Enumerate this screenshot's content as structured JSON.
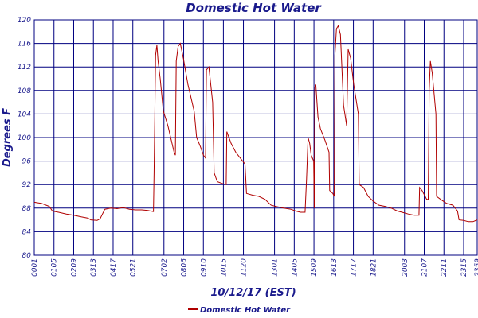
{
  "chart_data": {
    "type": "line",
    "title": "Domestic Hot Water",
    "xlabel": "10/12/17 (EST)",
    "ylabel": "Degrees F",
    "ylim": [
      80,
      120
    ],
    "yticks": [
      80,
      84,
      88,
      92,
      96,
      100,
      104,
      108,
      112,
      116,
      120
    ],
    "xlim": [
      "00:01",
      "23:59"
    ],
    "xticks": [
      "0001",
      "0105",
      "0209",
      "0313",
      "0417",
      "0521",
      "0702",
      "0806",
      "0910",
      "1015",
      "1120",
      "1301",
      "1405",
      "1509",
      "1613",
      "1717",
      "1821",
      "2003",
      "2107",
      "2211",
      "2315",
      "2359"
    ],
    "grid": true,
    "legend_position": "bottom-center",
    "line_color": "#b00000",
    "grid_color": "#000080",
    "series": [
      {
        "name": "Domestic Hot Water",
        "points": [
          [
            "00:01",
            89.0
          ],
          [
            "00:25",
            88.8
          ],
          [
            "00:50",
            88.3
          ],
          [
            "01:00",
            87.5
          ],
          [
            "01:20",
            87.3
          ],
          [
            "01:45",
            87.0
          ],
          [
            "02:09",
            86.8
          ],
          [
            "02:35",
            86.5
          ],
          [
            "02:55",
            86.3
          ],
          [
            "03:05",
            86.0
          ],
          [
            "03:25",
            85.9
          ],
          [
            "03:35",
            86.2
          ],
          [
            "03:50",
            87.8
          ],
          [
            "04:10",
            88.0
          ],
          [
            "04:30",
            87.9
          ],
          [
            "04:50",
            88.1
          ],
          [
            "05:10",
            87.8
          ],
          [
            "05:30",
            87.7
          ],
          [
            "05:50",
            87.7
          ],
          [
            "06:10",
            87.6
          ],
          [
            "06:28",
            87.4
          ],
          [
            "06:30",
            94.0
          ],
          [
            "06:35",
            114.0
          ],
          [
            "06:39",
            115.7
          ],
          [
            "06:43",
            113.0
          ],
          [
            "06:50",
            110.0
          ],
          [
            "07:00",
            104.5
          ],
          [
            "07:15",
            102.0
          ],
          [
            "07:35",
            97.5
          ],
          [
            "07:39",
            97.0
          ],
          [
            "07:42",
            113.0
          ],
          [
            "07:48",
            115.5
          ],
          [
            "07:55",
            116.0
          ],
          [
            "08:05",
            113.5
          ],
          [
            "08:20",
            109.0
          ],
          [
            "08:40",
            104.5
          ],
          [
            "08:48",
            100.0
          ],
          [
            "09:00",
            98.5
          ],
          [
            "09:10",
            97.0
          ],
          [
            "09:17",
            96.5
          ],
          [
            "09:20",
            111.5
          ],
          [
            "09:28",
            112.0
          ],
          [
            "09:40",
            106.0
          ],
          [
            "09:45",
            94.0
          ],
          [
            "09:55",
            92.5
          ],
          [
            "10:10",
            92.2
          ],
          [
            "10:24",
            92.0
          ],
          [
            "10:26",
            101.0
          ],
          [
            "10:40",
            99.0
          ],
          [
            "10:55",
            97.5
          ],
          [
            "11:10",
            96.5
          ],
          [
            "11:25",
            95.5
          ],
          [
            "11:30",
            90.5
          ],
          [
            "11:50",
            90.2
          ],
          [
            "12:10",
            90.0
          ],
          [
            "12:30",
            89.5
          ],
          [
            "12:50",
            88.5
          ],
          [
            "13:05",
            88.3
          ],
          [
            "13:30",
            88.0
          ],
          [
            "13:55",
            87.8
          ],
          [
            "14:10",
            87.5
          ],
          [
            "14:25",
            87.3
          ],
          [
            "14:40",
            87.3
          ],
          [
            "14:45",
            93.0
          ],
          [
            "14:50",
            100.0
          ],
          [
            "14:55",
            99.0
          ],
          [
            "15:00",
            97.0
          ],
          [
            "15:08",
            96.0
          ],
          [
            "15:10",
            88.0
          ],
          [
            "15:12",
            108.5
          ],
          [
            "15:15",
            109.0
          ],
          [
            "15:22",
            103.5
          ],
          [
            "15:30",
            101.5
          ],
          [
            "15:45",
            99.5
          ],
          [
            "15:58",
            97.5
          ],
          [
            "16:00",
            91.0
          ],
          [
            "16:10",
            90.5
          ],
          [
            "16:15",
            90.0
          ],
          [
            "16:17",
            114.0
          ],
          [
            "16:22",
            118.5
          ],
          [
            "16:28",
            119.0
          ],
          [
            "16:35",
            117.5
          ],
          [
            "16:45",
            105.5
          ],
          [
            "16:55",
            102.0
          ],
          [
            "17:00",
            115.0
          ],
          [
            "17:08",
            113.5
          ],
          [
            "17:18",
            109.0
          ],
          [
            "17:33",
            104.0
          ],
          [
            "17:36",
            92.0
          ],
          [
            "17:50",
            91.5
          ],
          [
            "18:05",
            90.0
          ],
          [
            "18:21",
            89.2
          ],
          [
            "18:40",
            88.5
          ],
          [
            "19:00",
            88.3
          ],
          [
            "19:20",
            88.0
          ],
          [
            "19:40",
            87.5
          ],
          [
            "19:55",
            87.3
          ],
          [
            "20:15",
            87.0
          ],
          [
            "20:35",
            86.8
          ],
          [
            "20:50",
            86.8
          ],
          [
            "20:52",
            91.5
          ],
          [
            "21:00",
            91.0
          ],
          [
            "21:15",
            89.5
          ],
          [
            "21:20",
            89.5
          ],
          [
            "21:23",
            108.0
          ],
          [
            "21:27",
            113.0
          ],
          [
            "21:33",
            111.0
          ],
          [
            "21:45",
            104.0
          ],
          [
            "21:47",
            90.0
          ],
          [
            "22:00",
            89.5
          ],
          [
            "22:20",
            88.8
          ],
          [
            "22:40",
            88.5
          ],
          [
            "22:55",
            87.5
          ],
          [
            "23:00",
            86.0
          ],
          [
            "23:15",
            85.9
          ],
          [
            "23:30",
            85.7
          ],
          [
            "23:45",
            85.7
          ],
          [
            "23:59",
            86.0
          ]
        ]
      }
    ]
  }
}
